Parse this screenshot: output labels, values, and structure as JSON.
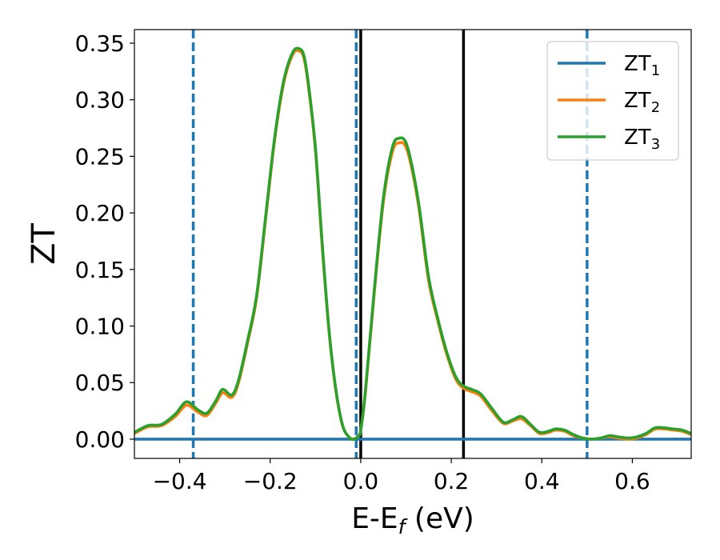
{
  "chart_data": {
    "type": "line",
    "title": "",
    "xlabel": "E-E",
    "xlabel_sub": "f",
    "xlabel_unit": " (eV)",
    "ylabel": "ZT",
    "xlim": [
      -0.5,
      0.73
    ],
    "ylim": [
      -0.017,
      0.362
    ],
    "xticks": [
      -0.4,
      -0.2,
      0.0,
      0.2,
      0.4,
      0.6
    ],
    "xtick_labels": [
      "−0.4",
      "−0.2",
      "0.0",
      "0.2",
      "0.4",
      "0.6"
    ],
    "yticks": [
      0.0,
      0.05,
      0.1,
      0.15,
      0.2,
      0.25,
      0.3,
      0.35
    ],
    "ytick_labels": [
      "0.00",
      "0.05",
      "0.10",
      "0.15",
      "0.20",
      "0.25",
      "0.30",
      "0.35"
    ],
    "grid": false,
    "legend_position": "top-right",
    "vlines": [
      {
        "x": -0.37,
        "style": "dashed",
        "color": "#1f77b4"
      },
      {
        "x": -0.01,
        "style": "dashed",
        "color": "#1f77b4"
      },
      {
        "x": 0.0,
        "style": "solid",
        "color": "#000000"
      },
      {
        "x": 0.227,
        "style": "solid",
        "color": "#000000"
      },
      {
        "x": 0.5,
        "style": "dashed",
        "color": "#1f77b4"
      }
    ],
    "series": [
      {
        "name": "ZT",
        "sub": "1",
        "color": "#1f77b4",
        "x": [
          -0.5,
          0.73
        ],
        "y": [
          0.0,
          0.0
        ]
      },
      {
        "name": "ZT",
        "sub": "2",
        "color": "#ff7f0e",
        "x": [
          -0.5,
          -0.47,
          -0.44,
          -0.41,
          -0.385,
          -0.36,
          -0.34,
          -0.32,
          -0.305,
          -0.285,
          -0.27,
          -0.25,
          -0.23,
          -0.21,
          -0.19,
          -0.17,
          -0.15,
          -0.135,
          -0.125,
          -0.115,
          -0.1,
          -0.085,
          -0.07,
          -0.055,
          -0.04,
          -0.025,
          -0.015,
          -0.005,
          0.0,
          0.01,
          0.03,
          0.05,
          0.07,
          0.085,
          0.1,
          0.115,
          0.13,
          0.15,
          0.17,
          0.19,
          0.21,
          0.227,
          0.245,
          0.265,
          0.29,
          0.315,
          0.335,
          0.355,
          0.375,
          0.395,
          0.415,
          0.43,
          0.45,
          0.47,
          0.49,
          0.51,
          0.53,
          0.55,
          0.57,
          0.59,
          0.61,
          0.63,
          0.65,
          0.67,
          0.69,
          0.71,
          0.73
        ],
        "y": [
          0.005,
          0.011,
          0.012,
          0.02,
          0.03,
          0.024,
          0.021,
          0.032,
          0.041,
          0.037,
          0.05,
          0.085,
          0.125,
          0.195,
          0.265,
          0.315,
          0.34,
          0.343,
          0.336,
          0.31,
          0.255,
          0.17,
          0.095,
          0.043,
          0.012,
          0.0015,
          0.0,
          0.003,
          0.008,
          0.04,
          0.13,
          0.21,
          0.254,
          0.262,
          0.258,
          0.235,
          0.2,
          0.14,
          0.105,
          0.075,
          0.053,
          0.045,
          0.042,
          0.038,
          0.025,
          0.014,
          0.016,
          0.018,
          0.012,
          0.005,
          0.006,
          0.008,
          0.007,
          0.003,
          0.001,
          0.0,
          0.001,
          0.002,
          0.001,
          0.0,
          0.001,
          0.004,
          0.009,
          0.009,
          0.008,
          0.007,
          0.004
        ]
      },
      {
        "name": "ZT",
        "sub": "3",
        "color": "#2ca02c",
        "x": [
          -0.5,
          -0.47,
          -0.44,
          -0.41,
          -0.385,
          -0.36,
          -0.34,
          -0.32,
          -0.305,
          -0.285,
          -0.27,
          -0.25,
          -0.23,
          -0.21,
          -0.19,
          -0.17,
          -0.15,
          -0.135,
          -0.125,
          -0.115,
          -0.1,
          -0.085,
          -0.07,
          -0.055,
          -0.04,
          -0.025,
          -0.015,
          -0.005,
          0.0,
          0.01,
          0.03,
          0.05,
          0.07,
          0.085,
          0.1,
          0.115,
          0.13,
          0.15,
          0.17,
          0.19,
          0.21,
          0.227,
          0.245,
          0.265,
          0.29,
          0.315,
          0.335,
          0.355,
          0.375,
          0.395,
          0.415,
          0.43,
          0.45,
          0.47,
          0.49,
          0.51,
          0.53,
          0.55,
          0.57,
          0.59,
          0.61,
          0.63,
          0.65,
          0.67,
          0.69,
          0.71,
          0.73
        ],
        "y": [
          0.006,
          0.012,
          0.013,
          0.022,
          0.033,
          0.026,
          0.023,
          0.034,
          0.044,
          0.039,
          0.052,
          0.087,
          0.127,
          0.197,
          0.267,
          0.317,
          0.342,
          0.345,
          0.338,
          0.312,
          0.257,
          0.172,
          0.096,
          0.044,
          0.012,
          0.0015,
          0.0,
          0.003,
          0.008,
          0.041,
          0.132,
          0.213,
          0.258,
          0.266,
          0.262,
          0.238,
          0.203,
          0.143,
          0.107,
          0.077,
          0.055,
          0.047,
          0.044,
          0.04,
          0.027,
          0.015,
          0.017,
          0.02,
          0.013,
          0.006,
          0.007,
          0.009,
          0.008,
          0.004,
          0.001,
          0.0,
          0.001,
          0.003,
          0.002,
          0.001,
          0.002,
          0.005,
          0.01,
          0.01,
          0.009,
          0.008,
          0.005
        ]
      }
    ]
  }
}
